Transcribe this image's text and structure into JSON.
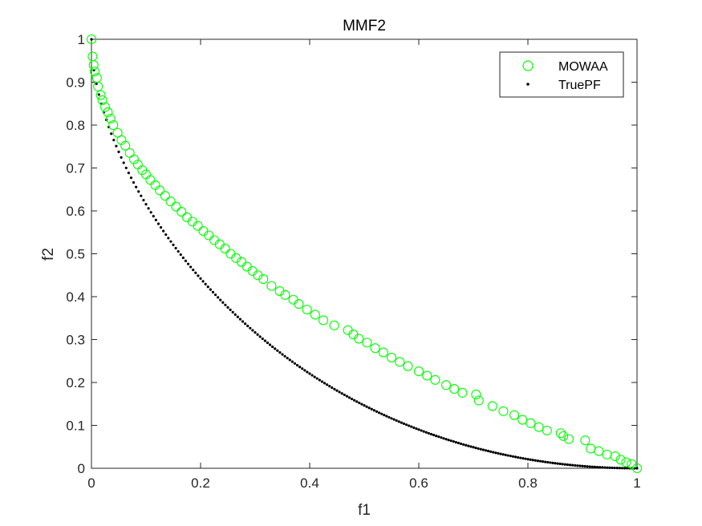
{
  "chart_data": {
    "type": "scatter",
    "title": "MMF2",
    "xlabel": "f1",
    "ylabel": "f2",
    "xlim": [
      0,
      1
    ],
    "ylim": [
      0,
      1
    ],
    "xticks": [
      0,
      0.2,
      0.4,
      0.6,
      0.8,
      1
    ],
    "xtick_labels": [
      "0",
      "0.2",
      "0.4",
      "0.6",
      "0.8",
      "1"
    ],
    "yticks": [
      0,
      0.1,
      0.2,
      0.3,
      0.4,
      0.5,
      0.6,
      0.7,
      0.8,
      0.9,
      1
    ],
    "ytick_labels": [
      "0",
      "0.1",
      "0.2",
      "0.3",
      "0.4",
      "0.5",
      "0.6",
      "0.7",
      "0.8",
      "0.9",
      "1"
    ],
    "grid": false,
    "legend": {
      "position": "top-right",
      "entries": [
        "MOWAA",
        "TruePF"
      ]
    },
    "series": [
      {
        "name": "MOWAA",
        "marker": "circle-open",
        "color": "#00ff00",
        "points": [
          [
            0.0,
            1.0
          ],
          [
            0.002,
            0.96
          ],
          [
            0.004,
            0.94
          ],
          [
            0.006,
            0.925
          ],
          [
            0.01,
            0.91
          ],
          [
            0.012,
            0.89
          ],
          [
            0.017,
            0.87
          ],
          [
            0.02,
            0.858
          ],
          [
            0.025,
            0.842
          ],
          [
            0.03,
            0.83
          ],
          [
            0.035,
            0.815
          ],
          [
            0.04,
            0.8
          ],
          [
            0.048,
            0.782
          ],
          [
            0.055,
            0.765
          ],
          [
            0.062,
            0.752
          ],
          [
            0.07,
            0.735
          ],
          [
            0.078,
            0.72
          ],
          [
            0.085,
            0.708
          ],
          [
            0.093,
            0.695
          ],
          [
            0.1,
            0.685
          ],
          [
            0.108,
            0.672
          ],
          [
            0.117,
            0.66
          ],
          [
            0.125,
            0.648
          ],
          [
            0.135,
            0.635
          ],
          [
            0.145,
            0.622
          ],
          [
            0.155,
            0.61
          ],
          [
            0.165,
            0.598
          ],
          [
            0.175,
            0.585
          ],
          [
            0.185,
            0.575
          ],
          [
            0.195,
            0.565
          ],
          [
            0.205,
            0.553
          ],
          [
            0.215,
            0.543
          ],
          [
            0.225,
            0.532
          ],
          [
            0.235,
            0.522
          ],
          [
            0.245,
            0.512
          ],
          [
            0.255,
            0.5
          ],
          [
            0.265,
            0.49
          ],
          [
            0.275,
            0.481
          ],
          [
            0.285,
            0.47
          ],
          [
            0.295,
            0.46
          ],
          [
            0.305,
            0.45
          ],
          [
            0.315,
            0.441
          ],
          [
            0.33,
            0.425
          ],
          [
            0.345,
            0.413
          ],
          [
            0.355,
            0.404
          ],
          [
            0.37,
            0.393
          ],
          [
            0.38,
            0.383
          ],
          [
            0.395,
            0.37
          ],
          [
            0.41,
            0.358
          ],
          [
            0.425,
            0.345
          ],
          [
            0.445,
            0.333
          ],
          [
            0.47,
            0.322
          ],
          [
            0.48,
            0.312
          ],
          [
            0.49,
            0.302
          ],
          [
            0.505,
            0.293
          ],
          [
            0.52,
            0.28
          ],
          [
            0.535,
            0.27
          ],
          [
            0.55,
            0.258
          ],
          [
            0.565,
            0.248
          ],
          [
            0.58,
            0.238
          ],
          [
            0.6,
            0.226
          ],
          [
            0.615,
            0.216
          ],
          [
            0.63,
            0.206
          ],
          [
            0.65,
            0.194
          ],
          [
            0.665,
            0.185
          ],
          [
            0.68,
            0.176
          ],
          [
            0.705,
            0.172
          ],
          [
            0.71,
            0.158
          ],
          [
            0.735,
            0.145
          ],
          [
            0.755,
            0.133
          ],
          [
            0.775,
            0.124
          ],
          [
            0.79,
            0.113
          ],
          [
            0.805,
            0.105
          ],
          [
            0.82,
            0.096
          ],
          [
            0.835,
            0.088
          ],
          [
            0.86,
            0.082
          ],
          [
            0.865,
            0.075
          ],
          [
            0.875,
            0.068
          ],
          [
            0.905,
            0.065
          ],
          [
            0.915,
            0.046
          ],
          [
            0.93,
            0.04
          ],
          [
            0.945,
            0.032
          ],
          [
            0.96,
            0.028
          ],
          [
            0.97,
            0.02
          ],
          [
            0.98,
            0.014
          ],
          [
            0.99,
            0.01
          ],
          [
            1.0,
            0.0
          ]
        ]
      },
      {
        "name": "TruePF",
        "marker": "dot",
        "color": "#000000",
        "curve": "f2 = 1 - sqrt(f1) blended toward a linear tail: f2 = 1 - f1^0.5 * (1 - f1) - f1",
        "points": []
      }
    ]
  }
}
